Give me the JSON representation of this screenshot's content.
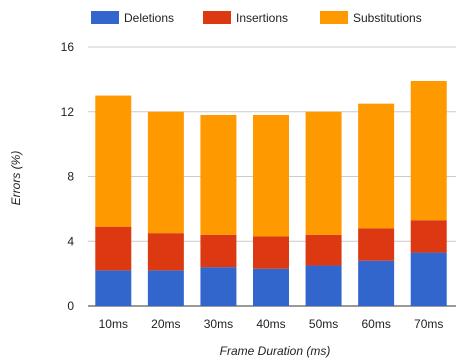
{
  "chart_data": {
    "type": "bar",
    "stacked": true,
    "categories": [
      "10ms",
      "20ms",
      "30ms",
      "40ms",
      "50ms",
      "60ms",
      "70ms"
    ],
    "series": [
      {
        "name": "Deletions",
        "color": "#3366cc",
        "values": [
          2.2,
          2.2,
          2.4,
          2.3,
          2.5,
          2.8,
          3.3
        ]
      },
      {
        "name": "Insertions",
        "color": "#dc3912",
        "values": [
          2.7,
          2.3,
          2.0,
          2.0,
          1.9,
          2.0,
          2.0
        ]
      },
      {
        "name": "Substitutions",
        "color": "#ff9900",
        "values": [
          8.1,
          7.5,
          7.4,
          7.5,
          7.6,
          7.7,
          8.6
        ]
      }
    ],
    "xlabel": "Frame Duration (ms)",
    "ylabel": "Errors (%)",
    "ylim": [
      0,
      16
    ],
    "yticks": [
      0,
      4,
      8,
      12,
      16
    ],
    "grid": true,
    "legend_position": "top"
  }
}
